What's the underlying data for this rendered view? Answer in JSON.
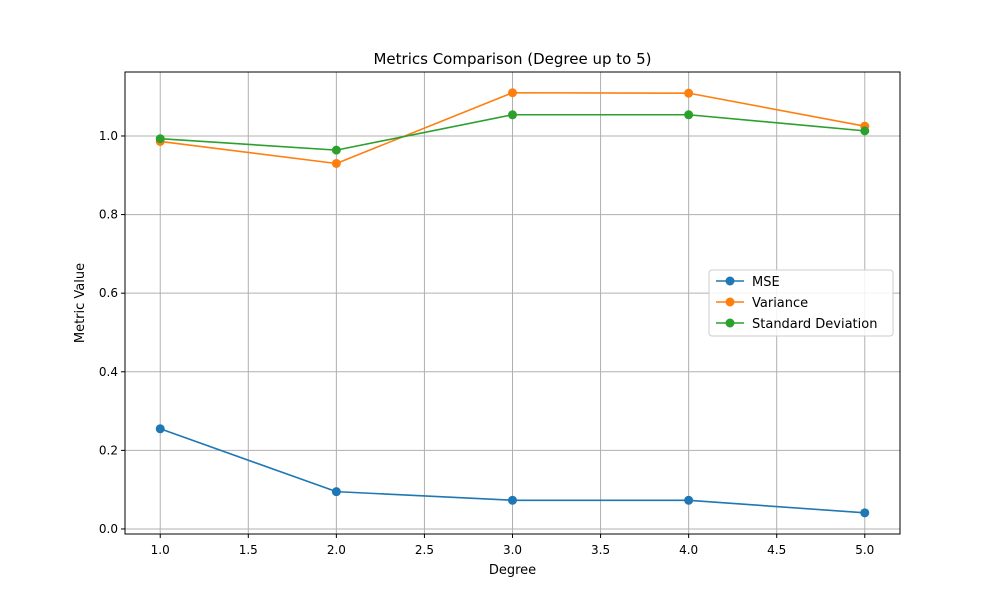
{
  "chart_data": {
    "type": "line",
    "title": "Metrics Comparison (Degree up to 5)",
    "xlabel": "Degree",
    "ylabel": "Metric Value",
    "x": [
      1,
      2,
      3,
      4,
      5
    ],
    "xlim": [
      0.8,
      5.2
    ],
    "ylim": [
      -0.0128,
      1.1628
    ],
    "x_ticks": [
      "1.0",
      "1.5",
      "2.0",
      "2.5",
      "3.0",
      "3.5",
      "4.0",
      "4.5",
      "5.0"
    ],
    "y_ticks": [
      "0.0",
      "0.2",
      "0.4",
      "0.6",
      "0.8",
      "1.0"
    ],
    "grid": true,
    "legend_position": "center-right",
    "series": [
      {
        "name": "MSE",
        "color": "#1f77b4",
        "marker": "circle",
        "values": [
          0.255,
          0.095,
          0.073,
          0.073,
          0.041
        ]
      },
      {
        "name": "Variance",
        "color": "#ff7f0e",
        "marker": "circle",
        "values": [
          0.986,
          0.93,
          1.11,
          1.109,
          1.025
        ]
      },
      {
        "name": "Standard Deviation",
        "color": "#2ca02c",
        "marker": "circle",
        "values": [
          0.993,
          0.964,
          1.054,
          1.054,
          1.013
        ]
      }
    ]
  }
}
